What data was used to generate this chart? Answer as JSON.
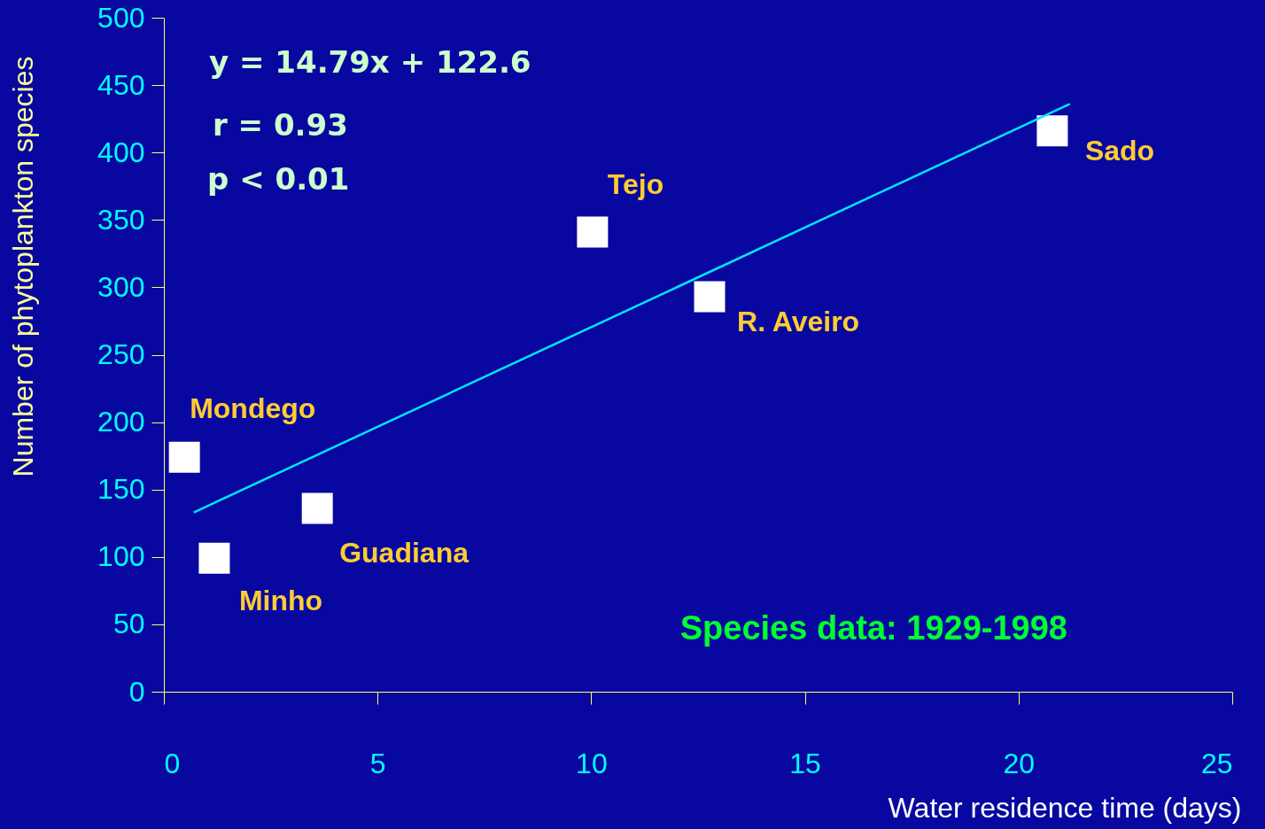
{
  "chart_data": {
    "type": "scatter",
    "xlabel": "Water residence time (days)",
    "ylabel": "Number of phytoplankton species",
    "series": [
      {
        "marker": "square",
        "color": "#ffffff",
        "x": [
          0.48,
          1.18,
          3.59,
          10.03,
          12.77,
          20.79
        ],
        "values": [
          174,
          99,
          136,
          341,
          293,
          416
        ]
      },
      {
        "type": "line",
        "color": "#00e5ff",
        "x": [
          0.7,
          21.2
        ],
        "values": [
          133,
          436
        ]
      }
    ],
    "xlim": [
      0,
      25
    ],
    "ylim": [
      0,
      500
    ],
    "xticks": [
      0,
      5,
      10,
      15,
      20,
      25
    ],
    "yticks": [
      0,
      50,
      100,
      150,
      200,
      250,
      300,
      350,
      400,
      450,
      500
    ],
    "line_style": "solid",
    "grid": false,
    "annotations": [
      {
        "text": "Mondego",
        "x": 0.48,
        "y": 174
      },
      {
        "text": "Minho",
        "x": 1.18,
        "y": 99
      },
      {
        "text": "Guadiana",
        "x": 3.59,
        "y": 136
      },
      {
        "text": "Tejo",
        "x": 10.03,
        "y": 341
      },
      {
        "text": "R. Aveiro",
        "x": 12.77,
        "y": 293
      },
      {
        "text": "Sado",
        "x": 20.79,
        "y": 416
      },
      "y = 14.79x + 122.6",
      "r = 0.93",
      "p < 0.01",
      "Species data: 1929-1998"
    ]
  }
}
